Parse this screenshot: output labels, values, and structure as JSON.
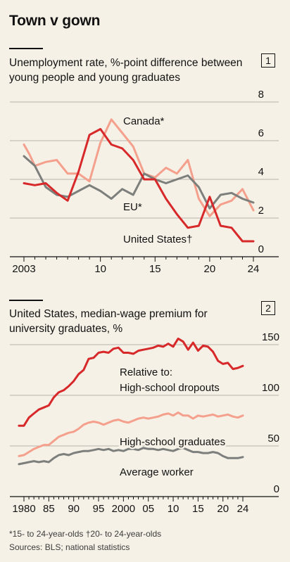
{
  "title": "Town v gown",
  "footnote": "*15- to 24-year-olds   †20- to 24-year-olds",
  "source": "Sources: BLS; national statistics",
  "colors": {
    "background": "#f6f1e7",
    "grid": "#b7b3ab",
    "axis": "#121212",
    "red": "#d7282a",
    "salmon": "#f4a08c",
    "grey": "#7c7f7c"
  },
  "chart_data": [
    {
      "type": "line",
      "number": "1",
      "title": "Unemployment rate, %-point difference between young people and young graduates",
      "xlim": [
        2003,
        2024
      ],
      "ylim": [
        0,
        8
      ],
      "yticks": [
        0,
        2,
        4,
        6,
        8
      ],
      "xticks": [
        {
          "value": 2003,
          "label": "2003"
        },
        {
          "value": 2010,
          "label": "10"
        },
        {
          "value": 2015,
          "label": "15"
        },
        {
          "value": 2020,
          "label": "20"
        },
        {
          "value": 2024,
          "label": "24"
        }
      ],
      "grid": true,
      "series": [
        {
          "name": "Canada*",
          "color": "#f4a08c",
          "x": [
            2003,
            2003.5,
            2004,
            2005,
            2006,
            2007,
            2008,
            2009,
            2010,
            2011,
            2012,
            2013,
            2014,
            2015,
            2016,
            2017,
            2018,
            2019,
            2020,
            2021,
            2022,
            2023,
            2024
          ],
          "y": [
            5.8,
            5.3,
            4.7,
            4.9,
            5.0,
            4.3,
            4.3,
            3.9,
            5.9,
            7.1,
            6.4,
            5.7,
            4.3,
            4.1,
            4.6,
            4.3,
            5.0,
            3.0,
            2.1,
            2.7,
            2.9,
            3.5,
            2.4
          ]
        },
        {
          "name": "EU*",
          "color": "#7c7f7c",
          "x": [
            2003,
            2004,
            2005,
            2006,
            2007,
            2008,
            2009,
            2010,
            2011,
            2012,
            2013,
            2014,
            2015,
            2016,
            2017,
            2018,
            2019,
            2020,
            2021,
            2022,
            2023,
            2024
          ],
          "y": [
            5.2,
            4.7,
            3.6,
            3.2,
            3.1,
            3.4,
            3.7,
            3.4,
            3.0,
            3.5,
            3.2,
            4.3,
            4.0,
            3.8,
            4.0,
            4.2,
            3.6,
            2.5,
            3.2,
            3.3,
            3.0,
            2.8
          ]
        },
        {
          "name": "United States†",
          "color": "#d7282a",
          "x": [
            2003,
            2004,
            2005,
            2006,
            2007,
            2008,
            2009,
            2010,
            2011,
            2012,
            2013,
            2014,
            2015,
            2016,
            2017,
            2018,
            2019,
            2020,
            2021,
            2022,
            2023,
            2024
          ],
          "y": [
            3.8,
            3.7,
            3.8,
            3.3,
            2.9,
            4.4,
            6.3,
            6.6,
            5.8,
            5.6,
            5.0,
            4.0,
            4.0,
            3.0,
            2.2,
            1.5,
            1.6,
            3.1,
            1.6,
            1.5,
            0.8,
            0.8
          ]
        }
      ]
    },
    {
      "type": "line",
      "number": "2",
      "title": "United States, median-wage premium for university graduates, %",
      "xlim": [
        1980,
        2024
      ],
      "ylim": [
        0,
        150
      ],
      "yticks": [
        0,
        50,
        100,
        150
      ],
      "xticks": [
        {
          "value": 1980,
          "label": "1980"
        },
        {
          "value": 1985,
          "label": "85"
        },
        {
          "value": 1990,
          "label": "90"
        },
        {
          "value": 1995,
          "label": "95"
        },
        {
          "value": 2000,
          "label": "2000"
        },
        {
          "value": 2005,
          "label": "05"
        },
        {
          "value": 2010,
          "label": "10"
        },
        {
          "value": 2015,
          "label": "15"
        },
        {
          "value": 2020,
          "label": "20"
        },
        {
          "value": 2024,
          "label": "24"
        }
      ],
      "grid": true,
      "annotation": "Relative to:",
      "series": [
        {
          "name": "High-school dropouts",
          "color": "#d7282a",
          "x": [
            1979,
            1980,
            1981,
            1982,
            1983,
            1984,
            1985,
            1986,
            1987,
            1988,
            1989,
            1990,
            1991,
            1992,
            1993,
            1994,
            1995,
            1996,
            1997,
            1998,
            1999,
            2000,
            2001,
            2002,
            2003,
            2004,
            2005,
            2006,
            2007,
            2008,
            2009,
            2010,
            2011,
            2012,
            2013,
            2014,
            2015,
            2016,
            2017,
            2018,
            2019,
            2020,
            2021,
            2022,
            2023,
            2024
          ],
          "y": [
            70,
            70,
            78,
            82,
            86,
            88,
            90,
            98,
            103,
            105,
            109,
            114,
            121,
            125,
            136,
            137,
            142,
            143,
            142,
            146,
            147,
            142,
            142,
            141,
            144,
            145,
            146,
            147,
            149,
            148,
            151,
            148,
            156,
            153,
            145,
            152,
            144,
            149,
            148,
            143,
            134,
            131,
            132,
            126,
            127,
            129
          ]
        },
        {
          "name": "High-school graduates",
          "color": "#f4a08c",
          "x": [
            1979,
            1980,
            1981,
            1982,
            1983,
            1984,
            1985,
            1986,
            1987,
            1988,
            1989,
            1990,
            1991,
            1992,
            1993,
            1994,
            1995,
            1996,
            1997,
            1998,
            1999,
            2000,
            2001,
            2002,
            2003,
            2004,
            2005,
            2006,
            2007,
            2008,
            2009,
            2010,
            2011,
            2012,
            2013,
            2014,
            2015,
            2016,
            2017,
            2018,
            2019,
            2020,
            2021,
            2022,
            2023,
            2024
          ],
          "y": [
            40,
            41,
            44,
            47,
            49,
            51,
            51,
            55,
            59,
            61,
            63,
            64,
            67,
            71,
            73,
            74,
            73,
            71,
            73,
            75,
            76,
            74,
            73,
            75,
            77,
            78,
            77,
            78,
            79,
            81,
            82,
            80,
            83,
            80,
            80,
            77,
            80,
            79,
            80,
            81,
            79,
            80,
            81,
            79,
            78,
            80
          ]
        },
        {
          "name": "Average worker",
          "color": "#7c7f7c",
          "x": [
            1979,
            1980,
            1981,
            1982,
            1983,
            1984,
            1985,
            1986,
            1987,
            1988,
            1989,
            1990,
            1991,
            1992,
            1993,
            1994,
            1995,
            1996,
            1997,
            1998,
            1999,
            2000,
            2001,
            2002,
            2003,
            2004,
            2005,
            2006,
            2007,
            2008,
            2009,
            2010,
            2011,
            2012,
            2013,
            2014,
            2015,
            2016,
            2017,
            2018,
            2019,
            2020,
            2021,
            2022,
            2023,
            2024
          ],
          "y": [
            32,
            33,
            34,
            35,
            34,
            35,
            34,
            38,
            41,
            42,
            41,
            43,
            44,
            45,
            45,
            46,
            47,
            46,
            47,
            45,
            46,
            45,
            47,
            47,
            46,
            48,
            47,
            47,
            46,
            47,
            46,
            45,
            47,
            48,
            46,
            44,
            44,
            43,
            43,
            44,
            43,
            40,
            38,
            38,
            38,
            39
          ]
        }
      ]
    }
  ]
}
